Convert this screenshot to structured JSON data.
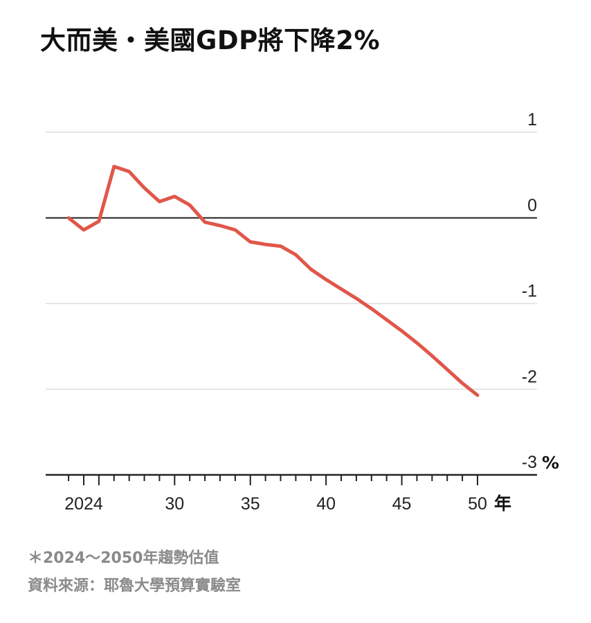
{
  "title": "大而美・美國GDP將下降2%",
  "footnote": "＊2024～2050年趨勢估值",
  "source": "資料來源：耶魯大學預算實驗室",
  "colors": {
    "line": "#e0574a",
    "grid": "#dddddd",
    "zero": "#222222",
    "axis": "#222222",
    "note": "#8a8a8a"
  },
  "chart_data": {
    "type": "line",
    "title": "大而美・美國GDP將下降2%",
    "xlabel": "年",
    "ylabel": "%",
    "xlim": [
      2022,
      2055
    ],
    "ylim": [
      -3,
      1
    ],
    "y_ticks": [
      1,
      0,
      -1,
      -2,
      -3
    ],
    "y_tick_labels": [
      "1",
      "0",
      "-1",
      "-2",
      "-3"
    ],
    "x_ticks": [
      2024,
      2030,
      2035,
      2040,
      2045,
      2050
    ],
    "x_tick_labels": [
      "2024",
      "30",
      "35",
      "40",
      "45",
      "50"
    ],
    "grid": true,
    "series": [
      {
        "x": [
          2023,
          2024,
          2025,
          2026,
          2027,
          2028,
          2029,
          2030,
          2031,
          2032,
          2033,
          2034,
          2035,
          2036,
          2037,
          2038,
          2039,
          2040,
          2041,
          2042,
          2043,
          2044,
          2045,
          2046,
          2047,
          2048,
          2049,
          2050
        ],
        "values": [
          0.0,
          -0.14,
          -0.04,
          0.6,
          0.54,
          0.35,
          0.19,
          0.25,
          0.15,
          -0.05,
          -0.09,
          -0.14,
          -0.28,
          -0.31,
          -0.33,
          -0.43,
          -0.6,
          -0.72,
          -0.83,
          -0.94,
          -1.06,
          -1.19,
          -1.32,
          -1.46,
          -1.61,
          -1.77,
          -1.93,
          -2.07
        ]
      }
    ]
  }
}
